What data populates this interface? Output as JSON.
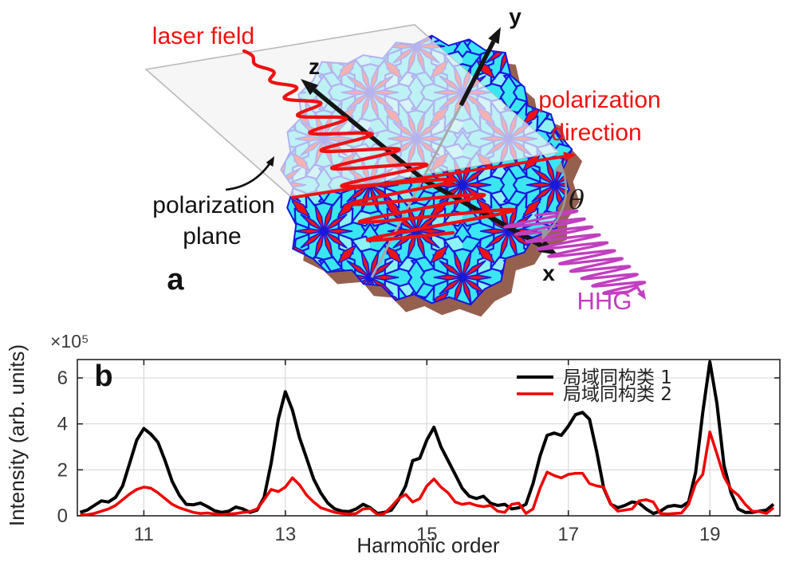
{
  "panel_a": {
    "label": "a",
    "labels": {
      "laser_field": "laser field",
      "polarization_direction_line1": "polarization",
      "polarization_direction_line2": "direction",
      "polarization_plane_line1": "polarization",
      "polarization_plane_line2": "plane",
      "hhg": "HHG",
      "theta": "θ",
      "axis_x": "x",
      "axis_y": "y",
      "axis_z": "z"
    },
    "colors": {
      "laser_red": "#ee1111",
      "hhg_magenta": "#c23ec0",
      "tile_cyan": "#3ae6f2",
      "tile_cyan_light": "#8df2f6",
      "tile_edge_blue": "#1717dd",
      "star_red": "#ee1111",
      "shadow_brown": "#96604f",
      "plane_fill": "#f6f6f6",
      "plane_border": "#b9b9b9",
      "axis_black": "#151515",
      "angle_gray": "#999999"
    }
  },
  "chart_data": {
    "type": "line",
    "panel_label": "b",
    "title": "",
    "xlabel": "Harmonic order",
    "ylabel": "Intensity (arb. units)",
    "y_exponent_label": "×10⁵",
    "xlim": [
      10.06,
      19.99
    ],
    "ylim": [
      0,
      6.8
    ],
    "xticks": [
      11,
      13,
      15,
      17,
      19
    ],
    "yticks": [
      0,
      2,
      4,
      6
    ],
    "grid": true,
    "legend_position": "upper-right-inside-nobox",
    "x_start": 10.1,
    "x_step": 0.1,
    "series": [
      {
        "name": "局域同构类 1",
        "color": "#000000",
        "values": [
          0.15,
          0.25,
          0.45,
          0.65,
          0.6,
          0.8,
          1.3,
          2.3,
          3.3,
          3.8,
          3.55,
          3.2,
          2.4,
          1.5,
          0.9,
          0.5,
          0.48,
          0.55,
          0.4,
          0.22,
          0.15,
          0.2,
          0.38,
          0.3,
          0.15,
          0.25,
          0.8,
          2.3,
          4.2,
          5.4,
          4.6,
          3.4,
          2.5,
          1.6,
          1.0,
          0.55,
          0.3,
          0.2,
          0.18,
          0.3,
          0.5,
          0.35,
          0.1,
          0.15,
          0.25,
          0.7,
          1.3,
          2.4,
          2.5,
          3.3,
          3.85,
          3.0,
          2.4,
          1.8,
          1.2,
          0.85,
          0.75,
          0.85,
          0.55,
          0.45,
          0.5,
          0.3,
          0.35,
          0.5,
          1.4,
          2.6,
          3.5,
          3.6,
          3.5,
          3.9,
          4.4,
          4.5,
          4.2,
          2.8,
          1.2,
          0.5,
          0.35,
          0.45,
          0.6,
          0.55,
          0.3,
          0.1,
          0.2,
          0.4,
          0.45,
          0.4,
          0.6,
          1.9,
          4.5,
          6.7,
          4.9,
          2.2,
          1.0,
          0.3,
          0.15,
          0.15,
          0.2,
          0.25,
          0.5
        ]
      },
      {
        "name": "局域同构类 2",
        "color": "#f00000",
        "values": [
          0.05,
          0.05,
          0.1,
          0.2,
          0.3,
          0.45,
          0.7,
          0.95,
          1.15,
          1.25,
          1.2,
          1.0,
          0.75,
          0.5,
          0.35,
          0.25,
          0.15,
          0.1,
          0.12,
          0.08,
          0.05,
          0.08,
          0.1,
          0.15,
          0.18,
          0.3,
          0.7,
          1.15,
          1.05,
          1.25,
          1.65,
          1.35,
          0.9,
          0.6,
          0.35,
          0.25,
          0.15,
          0.1,
          0.08,
          0.1,
          0.3,
          0.32,
          0.05,
          0.1,
          0.4,
          0.75,
          0.93,
          0.6,
          0.75,
          1.3,
          1.6,
          1.25,
          1.0,
          0.6,
          0.5,
          0.55,
          0.45,
          0.4,
          0.45,
          0.2,
          0.15,
          0.5,
          0.55,
          0.1,
          0.3,
          1.2,
          1.9,
          1.75,
          1.65,
          1.8,
          1.85,
          1.85,
          1.4,
          1.3,
          1.25,
          0.5,
          0.2,
          0.25,
          0.3,
          0.65,
          0.7,
          0.6,
          0.1,
          0.08,
          0.1,
          0.12,
          0.5,
          1.4,
          1.8,
          3.65,
          2.7,
          1.7,
          1.15,
          0.9,
          0.5,
          0.2,
          0.18,
          0.1,
          0.35
        ]
      }
    ],
    "axis_colors": {
      "border": "#262626",
      "grid": "#d9d9d9",
      "tick_label": "#3b3b3b"
    }
  }
}
